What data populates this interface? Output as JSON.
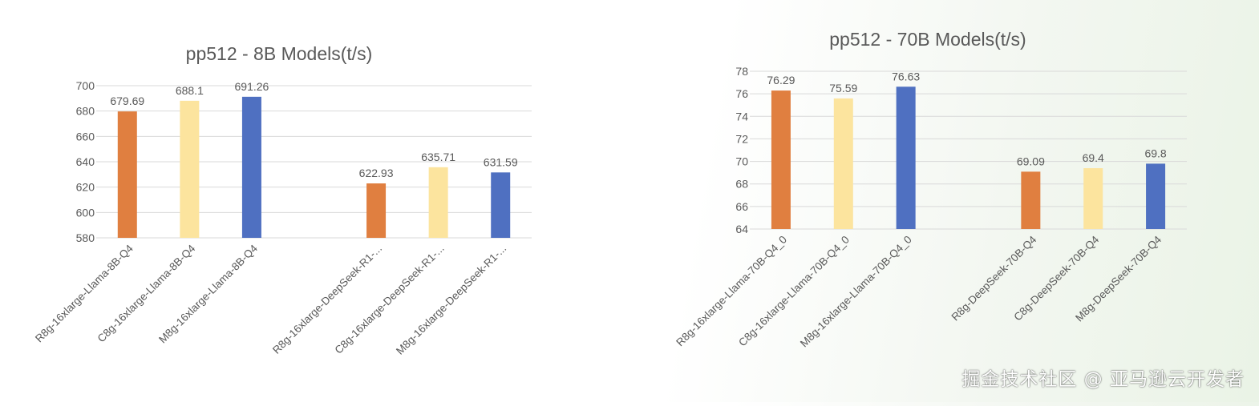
{
  "colors": {
    "r8g": "#E07F40",
    "c8g": "#FCE49E",
    "m8g": "#4F70C1",
    "grid": "#D9D9D9",
    "text": "#595959",
    "title": "#595959"
  },
  "watermark": "掘金技术社区 @ 亚马逊云开发者",
  "chart_data": [
    {
      "type": "bar",
      "title": "pp512 - 8B Models(t/s)",
      "ylim": [
        580,
        700
      ],
      "yticks": [
        580,
        600,
        620,
        640,
        660,
        680,
        700
      ],
      "grid": true,
      "categories": [
        "R8g-16xlarge-Llama-8B-Q4",
        "C8g-16xlarge-Llama-8B-Q4",
        "M8g-16xlarge-Llama-8B-Q4",
        "",
        "R8g-16xlarge-DeepSeek-R1-...",
        "C8g-16xlarge-DeepSeek-R1-...",
        "M8g-16xlarge-DeepSeek-R1-..."
      ],
      "values": [
        679.69,
        688.1,
        691.26,
        null,
        622.93,
        635.71,
        631.59
      ],
      "labels": [
        "679.69",
        "688.1",
        "691.26",
        "",
        "622.93",
        "635.71",
        "631.59"
      ],
      "bar_colors": [
        "r8g",
        "c8g",
        "m8g",
        "",
        "r8g",
        "c8g",
        "m8g"
      ]
    },
    {
      "type": "bar",
      "title": "pp512 - 70B Models(t/s)",
      "ylim": [
        64,
        78
      ],
      "yticks": [
        64,
        66,
        68,
        70,
        72,
        74,
        76,
        78
      ],
      "grid": true,
      "categories": [
        "R8g-16xlarge-Llama-70B-Q4_0",
        "C8g-16xlarge-Llama-70B-Q4_0",
        "M8g-16xlarge-Llama-70B-Q4_0",
        "",
        "R8g-DeepSeek-70B-Q4",
        "C8g-DeepSeek-70B-Q4",
        "M8g-DeepSeek-70B-Q4"
      ],
      "values": [
        76.29,
        75.59,
        76.63,
        null,
        69.09,
        69.4,
        69.8
      ],
      "labels": [
        "76.29",
        "75.59",
        "76.63",
        "",
        "69.09",
        "69.4",
        "69.8"
      ],
      "bar_colors": [
        "r8g",
        "c8g",
        "m8g",
        "",
        "r8g",
        "c8g",
        "m8g"
      ]
    }
  ]
}
